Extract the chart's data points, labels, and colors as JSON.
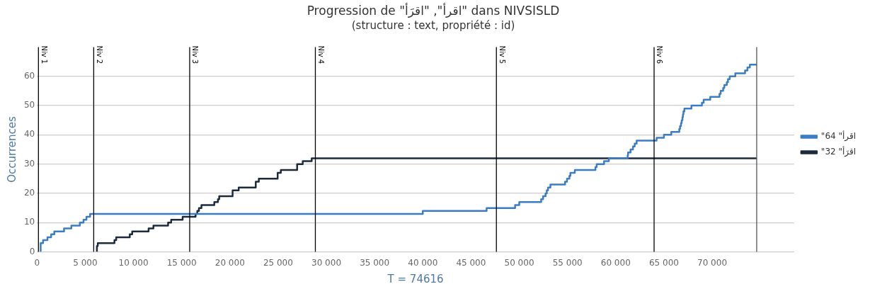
{
  "chart_data": {
    "type": "step",
    "title": "Progression de \"اقرأ\", \"اقرَأ\" dans NIVSISLD",
    "subtitle": "(structure : text, propriété : id)",
    "xlabel": "T = 74616",
    "ylabel": "Occurrences",
    "xlim": [
      0,
      78500
    ],
    "xticks": [
      0,
      {
        "value": 5000,
        "label": "5 000"
      },
      {
        "value": 10000,
        "label": "10 000"
      },
      {
        "value": 15000,
        "label": "15 000"
      },
      {
        "value": 20000,
        "label": "20 000"
      },
      {
        "value": 25000,
        "label": "25 000"
      },
      {
        "value": 30000,
        "label": "30 000"
      },
      {
        "value": 35000,
        "label": "35 000"
      },
      {
        "value": 40000,
        "label": "40 000"
      },
      {
        "value": 45000,
        "label": "45 000"
      },
      {
        "value": 50000,
        "label": "50 000"
      },
      {
        "value": 55000,
        "label": "55 000"
      },
      {
        "value": 60000,
        "label": "60 000"
      },
      {
        "value": 65000,
        "label": "65 000"
      },
      {
        "value": 70000,
        "label": "70 000"
      }
    ],
    "ylim": [
      0,
      70
    ],
    "yticks": [
      0,
      10,
      20,
      30,
      40,
      50,
      60
    ],
    "grid": "y",
    "legend": "right",
    "marker": "none",
    "line_style": "solid",
    "ref_lines": [
      {
        "axis": "x",
        "value": 150,
        "label": "Niv 1",
        "color": "#000000"
      },
      {
        "axis": "x",
        "value": 5880,
        "label": "Niv 2",
        "color": "#000000"
      },
      {
        "axis": "x",
        "value": 15830,
        "label": "Niv 3",
        "color": "#000000"
      },
      {
        "axis": "x",
        "value": 28860,
        "label": "Niv 4",
        "color": "#000000"
      },
      {
        "axis": "x",
        "value": 47630,
        "label": "Niv 5",
        "color": "#000000"
      },
      {
        "axis": "x",
        "value": 63980,
        "label": "Niv 6",
        "color": "#000000"
      },
      {
        "axis": "x",
        "value": 74616,
        "color": "#555555"
      }
    ],
    "series": [
      {
        "name": "\"اقرأ\" 64",
        "color": "#3b7dc4",
        "x": [
          379,
          379,
          631,
          1086,
          1465,
          1793,
          2803,
          3561,
          4444,
          4823,
          5126,
          5505,
          40000,
          46616,
          49570,
          50000,
          52270,
          52470,
          52730,
          52850,
          52980,
          53230,
          54750,
          54950,
          55200,
          55300,
          55760,
          57900,
          58030,
          58790,
          59290,
          61240,
          61280,
          61540,
          61790,
          61970,
          62170,
          64240,
          65000,
          65760,
          66590,
          66670,
          66770,
          66840,
          66920,
          66970,
          67020,
          67120,
          67850,
          68940,
          69120,
          69800,
          70760,
          70880,
          71140,
          71260,
          71520,
          71640,
          71820,
          72400,
          73410,
          73660,
          73910,
          74550,
          74616
        ],
        "values": [
          0,
          2,
          3,
          4,
          5,
          6,
          7,
          8,
          9,
          10,
          11,
          12,
          13,
          14,
          15,
          16,
          17,
          18,
          19,
          20,
          21,
          22,
          23,
          24,
          25,
          26,
          27,
          28,
          29,
          30,
          31,
          32,
          33,
          34,
          35,
          36,
          37,
          38,
          39,
          40,
          41,
          42,
          43,
          44,
          45,
          46,
          47,
          48,
          49,
          50,
          51,
          52,
          53,
          54,
          55,
          56,
          57,
          58,
          59,
          60,
          61,
          62,
          63,
          64,
          64
        ]
      },
      {
        "name": "\"اقرَأ\" 32",
        "color": "#1c2b3c",
        "x": [
          6212,
          6212,
          6300,
          8030,
          8210,
          9620,
          9870,
          11570,
          12070,
          13590,
          13910,
          15100,
          16440,
          16620,
          16790,
          17050,
          18380,
          18760,
          18890,
          20280,
          20910,
          22680,
          23000,
          24950,
          25280,
          26970,
          27550,
          28480,
          28610,
          74616
        ],
        "values": [
          0,
          1,
          2,
          3,
          4,
          5,
          6,
          7,
          8,
          9,
          10,
          11,
          12,
          13,
          14,
          15,
          16,
          17,
          18,
          19,
          21,
          22,
          24,
          25,
          27,
          28,
          30,
          31,
          32,
          32
        ]
      }
    ]
  }
}
